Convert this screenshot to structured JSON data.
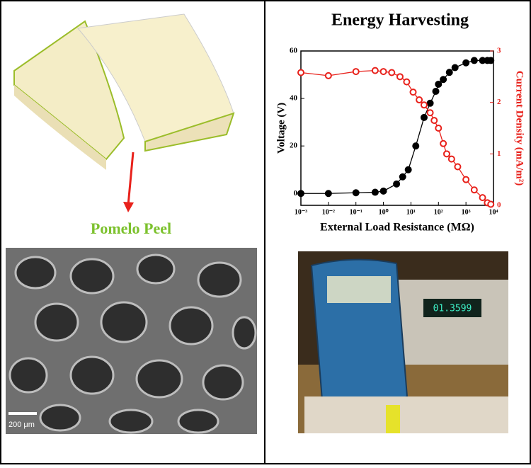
{
  "left_panel": {
    "label": "Pomelo Peel",
    "scale_bar": "200 μm"
  },
  "chart_data": {
    "type": "scatter-line",
    "title": "Energy Harvesting",
    "x_label": "External Load Resistance (MΩ)",
    "y_label": "Voltage (V)",
    "y2_label": "Current Density (mA/m²)",
    "log_x": true,
    "xlim": [
      0.001,
      10000
    ],
    "xticks": [
      {
        "value": 0.001,
        "label": "10⁻³"
      },
      {
        "value": 0.01,
        "label": "10⁻²"
      },
      {
        "value": 0.1,
        "label": "10⁻¹"
      },
      {
        "value": 1,
        "label": "10⁰"
      },
      {
        "value": 10,
        "label": "10¹"
      },
      {
        "value": 100,
        "label": "10²"
      },
      {
        "value": 1000,
        "label": "10³"
      },
      {
        "value": 10000,
        "label": "10⁴"
      }
    ],
    "ylim": [
      -5,
      60
    ],
    "yticks": [
      0,
      20,
      40,
      60
    ],
    "y2lim": [
      0,
      3
    ],
    "y2ticks": [
      0,
      1,
      2,
      3
    ],
    "series": [
      {
        "name": "Voltage",
        "color": "#000000",
        "axis": "y",
        "x": [
          0.001,
          0.01,
          0.1,
          0.5,
          1,
          3,
          5,
          8,
          15,
          30,
          50,
          80,
          100,
          150,
          250,
          400,
          1000,
          2000,
          4000,
          6000,
          8000
        ],
        "values": [
          0,
          0,
          0.3,
          0.5,
          1,
          4,
          7,
          10,
          20,
          32,
          38,
          43,
          46,
          48,
          51,
          53,
          55,
          56,
          56,
          56,
          56
        ]
      },
      {
        "name": "Current Density",
        "color": "#e8211b",
        "axis": "y2",
        "x": [
          0.001,
          0.01,
          0.1,
          0.5,
          1,
          2,
          4,
          7,
          12,
          20,
          30,
          50,
          70,
          100,
          150,
          200,
          300,
          500,
          1000,
          2000,
          4000,
          6000,
          8000
        ],
        "values": [
          2.58,
          2.52,
          2.6,
          2.62,
          2.6,
          2.58,
          2.5,
          2.4,
          2.2,
          2.05,
          1.95,
          1.8,
          1.65,
          1.5,
          1.2,
          1.0,
          0.9,
          0.75,
          0.5,
          0.3,
          0.15,
          0.05,
          0.02
        ]
      }
    ]
  }
}
